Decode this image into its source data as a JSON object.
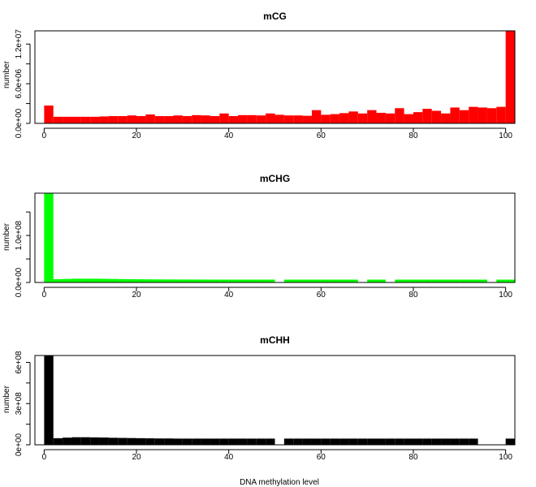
{
  "figure": {
    "xlabel": "DNA methylation level"
  },
  "chart_data": [
    {
      "type": "bar",
      "title": "mCG",
      "ylabel": "number",
      "color": "#ff0000",
      "xlim": [
        -2,
        102
      ],
      "ylim": [
        0,
        14000000
      ],
      "xticks": [
        0,
        20,
        40,
        60,
        80,
        100
      ],
      "xtick_labels": [
        "0",
        "20",
        "40",
        "60",
        "80",
        "100"
      ],
      "yticks": [
        0,
        3000000,
        6000000,
        9000000,
        12000000
      ],
      "ytick_labels": [
        "0.0e+00",
        "",
        "6.0e+06",
        "",
        "1.2e+07"
      ],
      "bin_width": 2,
      "x": [
        0,
        2,
        4,
        6,
        8,
        10,
        12,
        14,
        16,
        18,
        20,
        22,
        24,
        26,
        28,
        30,
        32,
        34,
        36,
        38,
        40,
        42,
        44,
        46,
        48,
        50,
        52,
        54,
        56,
        58,
        60,
        62,
        64,
        66,
        68,
        70,
        72,
        74,
        76,
        78,
        80,
        82,
        84,
        86,
        88,
        90,
        92,
        94,
        96,
        98,
        100
      ],
      "values": [
        2700000,
        1000000,
        1000000,
        1000000,
        1000000,
        1000000,
        1050000,
        1100000,
        1100000,
        1200000,
        1100000,
        1350000,
        1100000,
        1100000,
        1200000,
        1100000,
        1250000,
        1200000,
        1100000,
        1500000,
        1100000,
        1250000,
        1250000,
        1200000,
        1500000,
        1300000,
        1200000,
        1200000,
        1150000,
        2000000,
        1300000,
        1400000,
        1550000,
        1800000,
        1500000,
        2000000,
        1600000,
        1500000,
        2300000,
        1400000,
        1700000,
        2200000,
        1900000,
        1500000,
        2400000,
        2000000,
        2500000,
        2400000,
        2300000,
        2500000,
        14000000
      ]
    },
    {
      "type": "bar",
      "title": "mCHG",
      "ylabel": "number",
      "color": "#00ff00",
      "xlim": [
        -2,
        102
      ],
      "ylim": [
        0,
        190000000
      ],
      "xticks": [
        0,
        20,
        40,
        60,
        80,
        100
      ],
      "xtick_labels": [
        "0",
        "20",
        "40",
        "60",
        "80",
        "100"
      ],
      "yticks": [
        0,
        50000000,
        100000000,
        150000000
      ],
      "ytick_labels": [
        "0.0e+00",
        "",
        "1.0e+08",
        ""
      ],
      "bin_width": 2,
      "x": [
        0,
        2,
        4,
        6,
        8,
        10,
        12,
        14,
        16,
        18,
        20,
        22,
        24,
        26,
        28,
        30,
        32,
        34,
        36,
        38,
        40,
        42,
        44,
        46,
        48,
        50,
        52,
        54,
        56,
        58,
        60,
        62,
        64,
        66,
        68,
        70,
        72,
        74,
        76,
        78,
        80,
        82,
        84,
        86,
        88,
        90,
        92,
        94,
        96,
        98,
        100
      ],
      "values": [
        190000000,
        7000000,
        7500000,
        8000000,
        8000000,
        8000000,
        7800000,
        7500000,
        7200000,
        7000000,
        6800000,
        6600000,
        6500000,
        6400000,
        6300000,
        6200000,
        6200000,
        6100000,
        6000000,
        6000000,
        6000000,
        6000000,
        6000000,
        6000000,
        6000000,
        0,
        6000000,
        6000000,
        6000000,
        6000000,
        6000000,
        6000000,
        6000000,
        6000000,
        0,
        6000000,
        6000000,
        0,
        6000000,
        6000000,
        6000000,
        6000000,
        6000000,
        6000000,
        6000000,
        6000000,
        6000000,
        6000000,
        0,
        6000000,
        6000000
      ]
    },
    {
      "type": "bar",
      "title": "mCHH",
      "ylabel": "number",
      "color": "#000000",
      "xlim": [
        -2,
        102
      ],
      "ylim": [
        0,
        650000000
      ],
      "xticks": [
        0,
        20,
        40,
        60,
        80,
        100
      ],
      "xtick_labels": [
        "0",
        "20",
        "40",
        "60",
        "80",
        "100"
      ],
      "yticks": [
        0,
        150000000,
        300000000,
        450000000,
        600000000
      ],
      "ytick_labels": [
        "0e+00",
        "",
        "3e+08",
        "",
        "6e+08"
      ],
      "bin_width": 2,
      "x": [
        0,
        2,
        4,
        6,
        8,
        10,
        12,
        14,
        16,
        18,
        20,
        22,
        24,
        26,
        28,
        30,
        32,
        34,
        36,
        38,
        40,
        42,
        44,
        46,
        48,
        50,
        52,
        54,
        56,
        58,
        60,
        62,
        64,
        66,
        68,
        70,
        72,
        74,
        76,
        78,
        80,
        82,
        84,
        86,
        88,
        90,
        92,
        94,
        96,
        98,
        100
      ],
      "values": [
        650000000,
        48000000,
        52000000,
        55000000,
        55000000,
        54000000,
        53000000,
        51000000,
        50000000,
        49000000,
        48000000,
        47000000,
        46000000,
        46000000,
        45000000,
        45000000,
        45000000,
        45000000,
        45000000,
        45000000,
        45000000,
        45000000,
        45000000,
        45000000,
        45000000,
        0,
        45000000,
        45000000,
        45000000,
        45000000,
        45000000,
        45000000,
        45000000,
        45000000,
        45000000,
        45000000,
        45000000,
        45000000,
        45000000,
        45000000,
        45000000,
        45000000,
        45000000,
        45000000,
        45000000,
        45000000,
        45000000,
        0,
        0,
        0,
        45000000
      ]
    }
  ]
}
